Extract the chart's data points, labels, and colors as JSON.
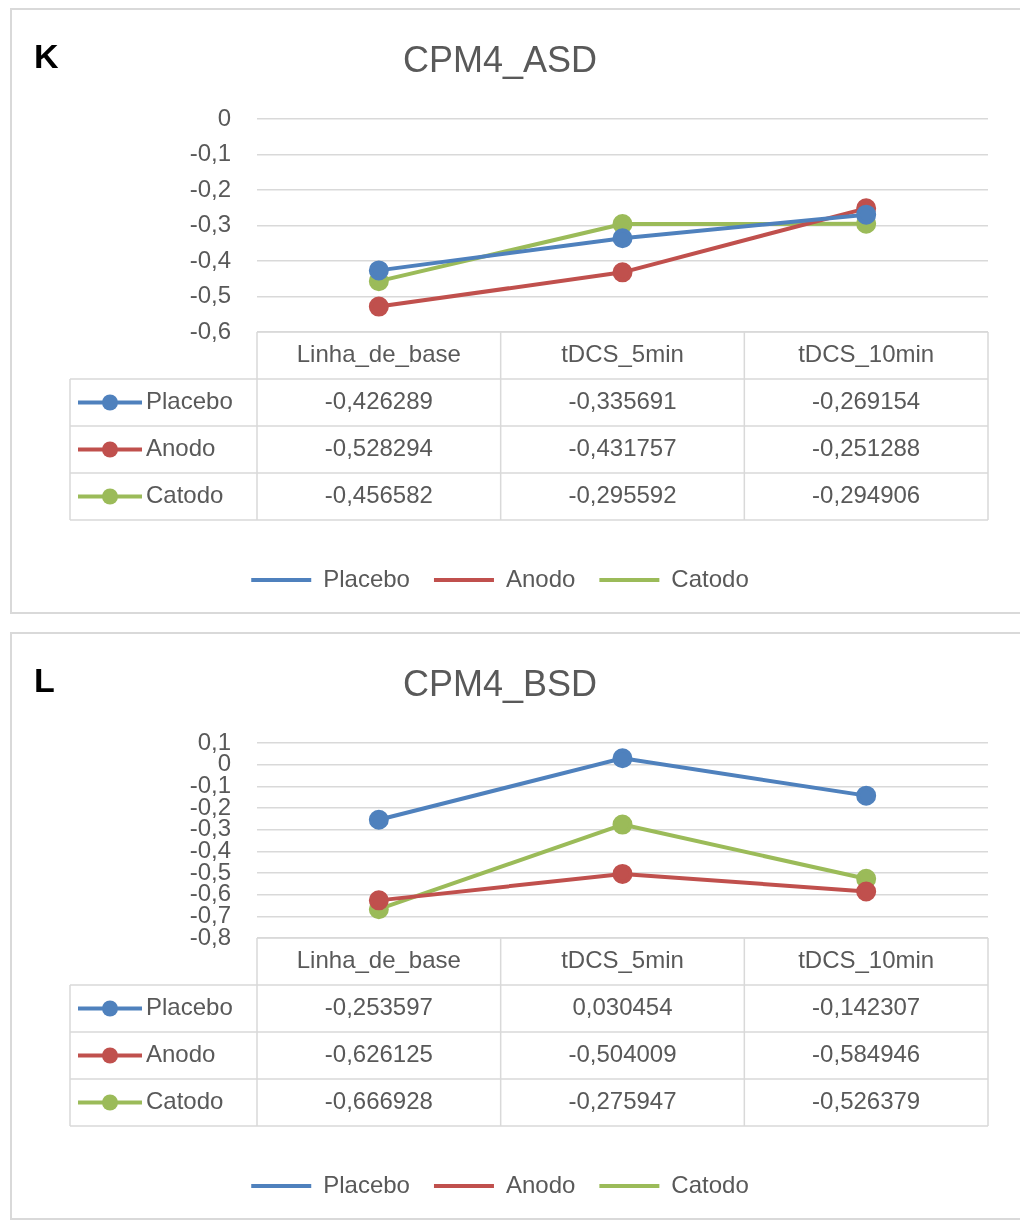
{
  "chart_data": [
    {
      "type": "line",
      "title": "CPM4_ASD",
      "annotations": [
        "K"
      ],
      "categories": [
        "Linha_de_base",
        "tDCS_5min",
        "tDCS_10min"
      ],
      "series": [
        {
          "name": "Placebo",
          "color": "#4f81bd",
          "values": [
            -0.426289,
            -0.335691,
            -0.269154
          ],
          "value_labels": [
            "-0,426289",
            "-0,335691",
            "-0,269154"
          ]
        },
        {
          "name": "Anodo",
          "color": "#c0504d",
          "values": [
            -0.528294,
            -0.431757,
            -0.251288
          ],
          "value_labels": [
            "-0,528294",
            "-0,431757",
            "-0,251288"
          ]
        },
        {
          "name": "Catodo",
          "color": "#9bbb59",
          "values": [
            -0.456582,
            -0.295592,
            -0.294906
          ],
          "value_labels": [
            "-0,456582",
            "-0,295592",
            "-0,294906"
          ]
        }
      ],
      "ylim": [
        -0.6,
        0
      ],
      "yticks": [
        0,
        {
          "value": -0.1,
          "label": "-0,1"
        },
        {
          "value": -0.2,
          "label": "-0,2"
        },
        {
          "value": -0.3,
          "label": "-0,3"
        },
        {
          "value": -0.4,
          "label": "-0,4"
        },
        {
          "value": -0.5,
          "label": "-0,5"
        },
        {
          "value": -0.6,
          "label": "-0,6"
        }
      ],
      "grid": "y",
      "legend": "bottom",
      "marker": "circle",
      "line_style": "solid"
    },
    {
      "type": "line",
      "title": "CPM4_BSD",
      "annotations": [
        "L"
      ],
      "categories": [
        "Linha_de_base",
        "tDCS_5min",
        "tDCS_10min"
      ],
      "series": [
        {
          "name": "Placebo",
          "color": "#4f81bd",
          "values": [
            -0.253597,
            0.030454,
            -0.142307
          ],
          "value_labels": [
            "-0,253597",
            "0,030454",
            "-0,142307"
          ]
        },
        {
          "name": "Anodo",
          "color": "#c0504d",
          "values": [
            -0.626125,
            -0.504009,
            -0.584946
          ],
          "value_labels": [
            "-0,626125",
            "-0,504009",
            "-0,584946"
          ]
        },
        {
          "name": "Catodo",
          "color": "#9bbb59",
          "values": [
            -0.666928,
            -0.275947,
            -0.526379
          ],
          "value_labels": [
            "-0,666928",
            "-0,275947",
            "-0,526379"
          ]
        }
      ],
      "ylim": [
        -0.8,
        0.1
      ],
      "yticks": [
        {
          "value": 0.1,
          "label": "0,1"
        },
        0,
        {
          "value": -0.1,
          "label": "-0,1"
        },
        {
          "value": -0.2,
          "label": "-0,2"
        },
        {
          "value": -0.3,
          "label": "-0,3"
        },
        {
          "value": -0.4,
          "label": "-0,4"
        },
        {
          "value": -0.5,
          "label": "-0,5"
        },
        {
          "value": -0.6,
          "label": "-0,6"
        },
        {
          "value": -0.7,
          "label": "-0,7"
        },
        {
          "value": -0.8,
          "label": "-0,8"
        }
      ],
      "grid": "y",
      "legend": "bottom",
      "marker": "circle",
      "line_style": "solid"
    }
  ]
}
